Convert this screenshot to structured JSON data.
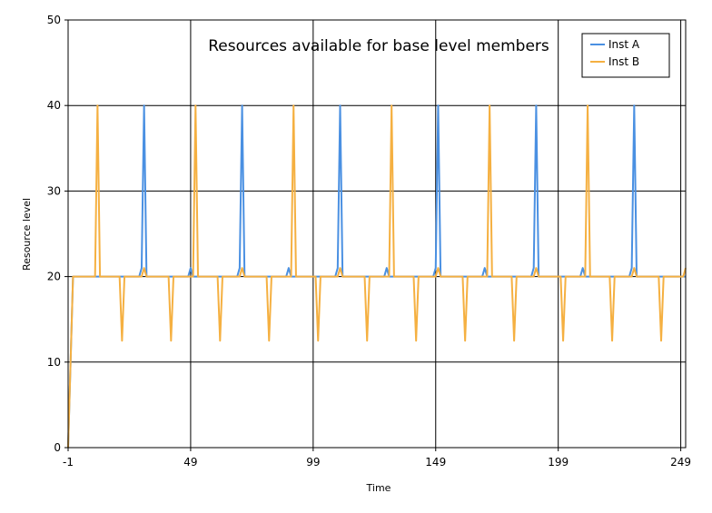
{
  "chart_data": {
    "type": "line",
    "title": "Resources available for base level members",
    "xlabel": "Time",
    "ylabel": "Resource level",
    "xlim": [
      -1,
      251
    ],
    "ylim": [
      0,
      50
    ],
    "x_ticks": [
      -1,
      49,
      99,
      149,
      199,
      249
    ],
    "y_ticks": [
      0,
      10,
      20,
      30,
      40,
      50
    ],
    "grid": true,
    "legend_position": "top-right",
    "series": [
      {
        "name": "Inst A",
        "color": "#4a90e2",
        "points": [
          [
            -1,
            0
          ],
          [
            1,
            20
          ],
          [
            28,
            20
          ],
          [
            29,
            21
          ],
          [
            30,
            40
          ],
          [
            31,
            20
          ],
          [
            48,
            20
          ],
          [
            49,
            21
          ],
          [
            50,
            20
          ],
          [
            68,
            20
          ],
          [
            69,
            21
          ],
          [
            70,
            40
          ],
          [
            71,
            20
          ],
          [
            88,
            20
          ],
          [
            89,
            21
          ],
          [
            90,
            20
          ],
          [
            108,
            20
          ],
          [
            109,
            21
          ],
          [
            110,
            40
          ],
          [
            111,
            20
          ],
          [
            128,
            20
          ],
          [
            129,
            21
          ],
          [
            130,
            20
          ],
          [
            148,
            20
          ],
          [
            149,
            21
          ],
          [
            150,
            40
          ],
          [
            151,
            20
          ],
          [
            168,
            20
          ],
          [
            169,
            21
          ],
          [
            170,
            20
          ],
          [
            188,
            20
          ],
          [
            189,
            21
          ],
          [
            190,
            40
          ],
          [
            191,
            20
          ],
          [
            208,
            20
          ],
          [
            209,
            21
          ],
          [
            210,
            20
          ],
          [
            228,
            20
          ],
          [
            229,
            21
          ],
          [
            230,
            40
          ],
          [
            231,
            20
          ],
          [
            251,
            20
          ]
        ]
      },
      {
        "name": "Inst B",
        "color": "#f5b041",
        "points": [
          [
            -1,
            0
          ],
          [
            1,
            20
          ],
          [
            10,
            20
          ],
          [
            11,
            40
          ],
          [
            12,
            20
          ],
          [
            20,
            20
          ],
          [
            21,
            12.5
          ],
          [
            22,
            20
          ],
          [
            29,
            20
          ],
          [
            30,
            21
          ],
          [
            31,
            20
          ],
          [
            40,
            20
          ],
          [
            41,
            12.5
          ],
          [
            42,
            20
          ],
          [
            50,
            20
          ],
          [
            51,
            40
          ],
          [
            52,
            20
          ],
          [
            60,
            20
          ],
          [
            61,
            12.5
          ],
          [
            62,
            20
          ],
          [
            69,
            20
          ],
          [
            70,
            21
          ],
          [
            71,
            20
          ],
          [
            80,
            20
          ],
          [
            81,
            12.5
          ],
          [
            82,
            20
          ],
          [
            90,
            20
          ],
          [
            91,
            40
          ],
          [
            92,
            20
          ],
          [
            100,
            20
          ],
          [
            101,
            12.5
          ],
          [
            102,
            20
          ],
          [
            109,
            20
          ],
          [
            110,
            21
          ],
          [
            111,
            20
          ],
          [
            120,
            20
          ],
          [
            121,
            12.5
          ],
          [
            122,
            20
          ],
          [
            130,
            20
          ],
          [
            131,
            40
          ],
          [
            132,
            20
          ],
          [
            140,
            20
          ],
          [
            141,
            12.5
          ],
          [
            142,
            20
          ],
          [
            149,
            20
          ],
          [
            150,
            21
          ],
          [
            151,
            20
          ],
          [
            160,
            20
          ],
          [
            161,
            12.5
          ],
          [
            162,
            20
          ],
          [
            170,
            20
          ],
          [
            171,
            40
          ],
          [
            172,
            20
          ],
          [
            180,
            20
          ],
          [
            181,
            12.5
          ],
          [
            182,
            20
          ],
          [
            189,
            20
          ],
          [
            190,
            21
          ],
          [
            191,
            20
          ],
          [
            200,
            20
          ],
          [
            201,
            12.5
          ],
          [
            202,
            20
          ],
          [
            210,
            20
          ],
          [
            211,
            40
          ],
          [
            212,
            20
          ],
          [
            220,
            20
          ],
          [
            221,
            12.5
          ],
          [
            222,
            20
          ],
          [
            229,
            20
          ],
          [
            230,
            21
          ],
          [
            231,
            20
          ],
          [
            240,
            20
          ],
          [
            241,
            12.5
          ],
          [
            242,
            20
          ],
          [
            250,
            20
          ],
          [
            251,
            21
          ]
        ]
      }
    ]
  }
}
